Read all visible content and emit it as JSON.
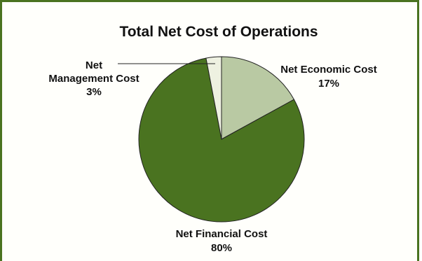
{
  "chart_data": {
    "type": "pie",
    "title": "Total Net Cost of Operations",
    "slices": [
      {
        "name": "Net Economic Cost",
        "value": 17,
        "label_lines": [
          "Net Economic Cost",
          "17%"
        ],
        "color": "#b9c9a3"
      },
      {
        "name": "Net Financial Cost",
        "value": 80,
        "label_lines": [
          "Net Financial Cost",
          "80%"
        ],
        "color": "#4a7320"
      },
      {
        "name": "Net Management Cost",
        "value": 3,
        "label_lines": [
          "Net",
          "Management Cost",
          "3%"
        ],
        "color": "#eef1e1"
      }
    ],
    "start_angle": "12 o'clock",
    "direction": "clockwise",
    "legend": "none"
  }
}
